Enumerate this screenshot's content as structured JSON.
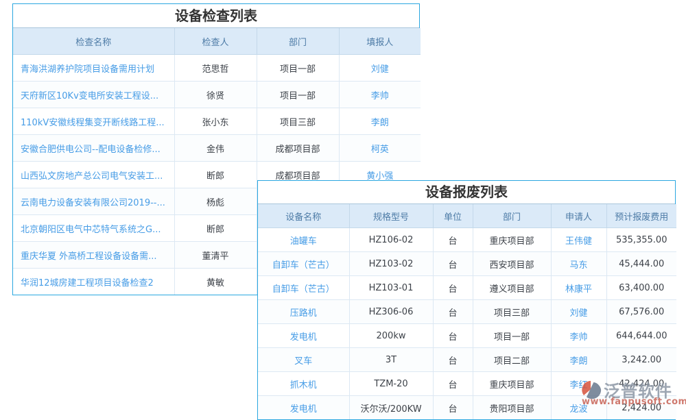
{
  "inspection_table": {
    "title": "设备检查列表",
    "columns": [
      "检查名称",
      "检查人",
      "部门",
      "填报人"
    ],
    "rows": [
      [
        "青海洪湖养护院项目设备需用计划",
        "范思哲",
        "项目一部",
        "刘健"
      ],
      [
        "天府新区10Kv变电所安装工程设...",
        "徐贤",
        "项目一部",
        "李帅"
      ],
      [
        "110kV安徽线程集变开断线路工程...",
        "张小东",
        "项目三部",
        "李朗"
      ],
      [
        "安徽合肥供电公司--配电设备检修...",
        "金伟",
        "成都项目部",
        "柯英"
      ],
      [
        "山西弘文房地产总公司电气安装工...",
        "断郎",
        "成都项目部",
        "黄小强"
      ],
      [
        "云南电力设备安装有限公司2019--...",
        "杨彪",
        "",
        ""
      ],
      [
        "北京朝阳区电气中芯特气系统之G...",
        "断郎",
        "",
        ""
      ],
      [
        "重庆华夏 外高桥工程设备设备需...",
        "董清平",
        "",
        ""
      ],
      [
        "华润12城房建工程项目设备检查2",
        "黄敏",
        "",
        ""
      ]
    ]
  },
  "scrap_table": {
    "title": "设备报废列表",
    "columns": [
      "设备名称",
      "规格型号",
      "单位",
      "部门",
      "申请人",
      "预计报废费用"
    ],
    "rows": [
      [
        "油罐车",
        "HZ106-02",
        "台",
        "重庆项目部",
        "王伟健",
        "535,355.00"
      ],
      [
        "自卸车（芒古）",
        "HZ103-02",
        "台",
        "西安项目部",
        "马东",
        "45,444.00"
      ],
      [
        "自卸车（芒古）",
        "HZ103-01",
        "台",
        "遵义项目部",
        "林康平",
        "63,400.00"
      ],
      [
        "压路机",
        "HZ306-06",
        "台",
        "项目三部",
        "刘健",
        "67,576.00"
      ],
      [
        "发电机",
        "200kw",
        "台",
        "项目一部",
        "李帅",
        "644,644.00"
      ],
      [
        "叉车",
        "3T",
        "台",
        "项目二部",
        "李朗",
        "3,242.00"
      ],
      [
        "抓木机",
        "TZM-20",
        "台",
        "重庆项目部",
        "李红",
        "42,424.00"
      ],
      [
        "发电机",
        "沃尔沃/200KW",
        "台",
        "贵阳项目部",
        "龙波",
        "2,424.00"
      ]
    ]
  },
  "watermark": {
    "brand": "泛普软件",
    "url": "www.fanpusoft.com"
  },
  "colors": {
    "table_border": "#2aa7e0",
    "header_bg": "#dbeaf8",
    "header_text": "#4d7ba6",
    "link_text": "#469ce6",
    "body_text": "#3c4148",
    "watermark_text": "#8d97a5",
    "watermark_url": "#c4584a",
    "logo_orange": "#d6523c",
    "logo_slate": "#68788e"
  }
}
